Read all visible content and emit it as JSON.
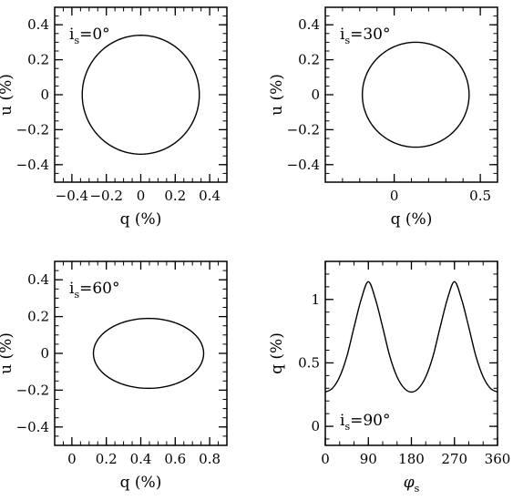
{
  "chart_data": [
    {
      "type": "line",
      "panel": "top-left",
      "annotation": {
        "base": "i",
        "sub": "s",
        "value": "=0°"
      },
      "xlabel": "q (%)",
      "ylabel": "u (%)",
      "xlim": [
        -0.5,
        0.5
      ],
      "ylim": [
        -0.5,
        0.5
      ],
      "xticks": [
        {
          "v": -0.4,
          "label": "−0.4"
        },
        {
          "v": -0.2,
          "label": "−0.2"
        },
        {
          "v": 0,
          "label": "0"
        },
        {
          "v": 0.2,
          "label": "0.2"
        },
        {
          "v": 0.4,
          "label": "0.4"
        }
      ],
      "yticks": [
        {
          "v": -0.4,
          "label": "−0.4"
        },
        {
          "v": -0.2,
          "label": "−0.2"
        },
        {
          "v": 0,
          "label": "0"
        },
        {
          "v": 0.2,
          "label": "0.2"
        },
        {
          "v": 0.4,
          "label": "0.4"
        }
      ],
      "curve": {
        "kind": "ellipse",
        "center": [
          0,
          0
        ],
        "radius_x": 0.34,
        "radius_y": 0.34
      },
      "grid": false,
      "legend": "none"
    },
    {
      "type": "line",
      "panel": "top-right",
      "annotation": {
        "base": "i",
        "sub": "s",
        "value": "=30°"
      },
      "xlabel": "q (%)",
      "ylabel": "u (%)",
      "xlim": [
        -0.4,
        0.6
      ],
      "ylim": [
        -0.5,
        0.5
      ],
      "xticks": [
        {
          "v": 0,
          "label": "0"
        },
        {
          "v": 0.5,
          "label": "0.5"
        }
      ],
      "yticks": [
        {
          "v": -0.4,
          "label": "−0.4"
        },
        {
          "v": -0.2,
          "label": "−0.2"
        },
        {
          "v": 0,
          "label": "0"
        },
        {
          "v": 0.2,
          "label": "0.2"
        },
        {
          "v": 0.4,
          "label": "0.4"
        }
      ],
      "curve": {
        "kind": "ellipse",
        "center": [
          0.125,
          0
        ],
        "radius_x": 0.31,
        "radius_y": 0.3
      },
      "grid": false,
      "legend": "none"
    },
    {
      "type": "line",
      "panel": "bottom-left",
      "annotation": {
        "base": "i",
        "sub": "s",
        "value": "=60°"
      },
      "xlabel": "q (%)",
      "ylabel": "u (%)",
      "xlim": [
        -0.1,
        0.9
      ],
      "ylim": [
        -0.5,
        0.5
      ],
      "xticks": [
        {
          "v": 0,
          "label": "0"
        },
        {
          "v": 0.2,
          "label": "0.2"
        },
        {
          "v": 0.4,
          "label": "0.4"
        },
        {
          "v": 0.6,
          "label": "0.6"
        },
        {
          "v": 0.8,
          "label": "0.8"
        }
      ],
      "yticks": [
        {
          "v": -0.4,
          "label": "−0.4"
        },
        {
          "v": -0.2,
          "label": "−0.2"
        },
        {
          "v": 0,
          "label": "0"
        },
        {
          "v": 0.2,
          "label": "0.2"
        },
        {
          "v": 0.4,
          "label": "0.4"
        }
      ],
      "curve": {
        "kind": "ellipse",
        "center": [
          0.445,
          0
        ],
        "radius_x": 0.32,
        "radius_y": 0.19
      },
      "grid": false,
      "legend": "none"
    },
    {
      "type": "line",
      "panel": "bottom-right",
      "annotation": {
        "base": "i",
        "sub": "s",
        "value": "=90°"
      },
      "xlabel": "φ",
      "xlabel_sub": "s",
      "ylabel": "q (%)",
      "xlim": [
        0,
        360
      ],
      "ylim": [
        -0.15,
        1.3
      ],
      "xticks": [
        {
          "v": 0,
          "label": "0"
        },
        {
          "v": 90,
          "label": "90"
        },
        {
          "v": 180,
          "label": "180"
        },
        {
          "v": 270,
          "label": "270"
        },
        {
          "v": 360,
          "label": "360"
        }
      ],
      "yticks": [
        {
          "v": 0,
          "label": "0"
        },
        {
          "v": 0.5,
          "label": "0.5"
        },
        {
          "v": 1,
          "label": "1"
        }
      ],
      "curve": {
        "kind": "samples",
        "x": [
          0,
          15,
          30,
          45,
          60,
          75,
          90,
          105,
          120,
          135,
          150,
          165,
          180,
          195,
          210,
          225,
          240,
          255,
          270,
          285,
          300,
          315,
          330,
          345,
          360
        ],
        "y": [
          0.27,
          0.3,
          0.39,
          0.55,
          0.78,
          1.0,
          1.14,
          1.0,
          0.78,
          0.55,
          0.39,
          0.3,
          0.27,
          0.3,
          0.39,
          0.55,
          0.78,
          1.0,
          1.14,
          1.0,
          0.78,
          0.55,
          0.39,
          0.3,
          0.27
        ]
      },
      "grid": false,
      "legend": "none"
    }
  ]
}
